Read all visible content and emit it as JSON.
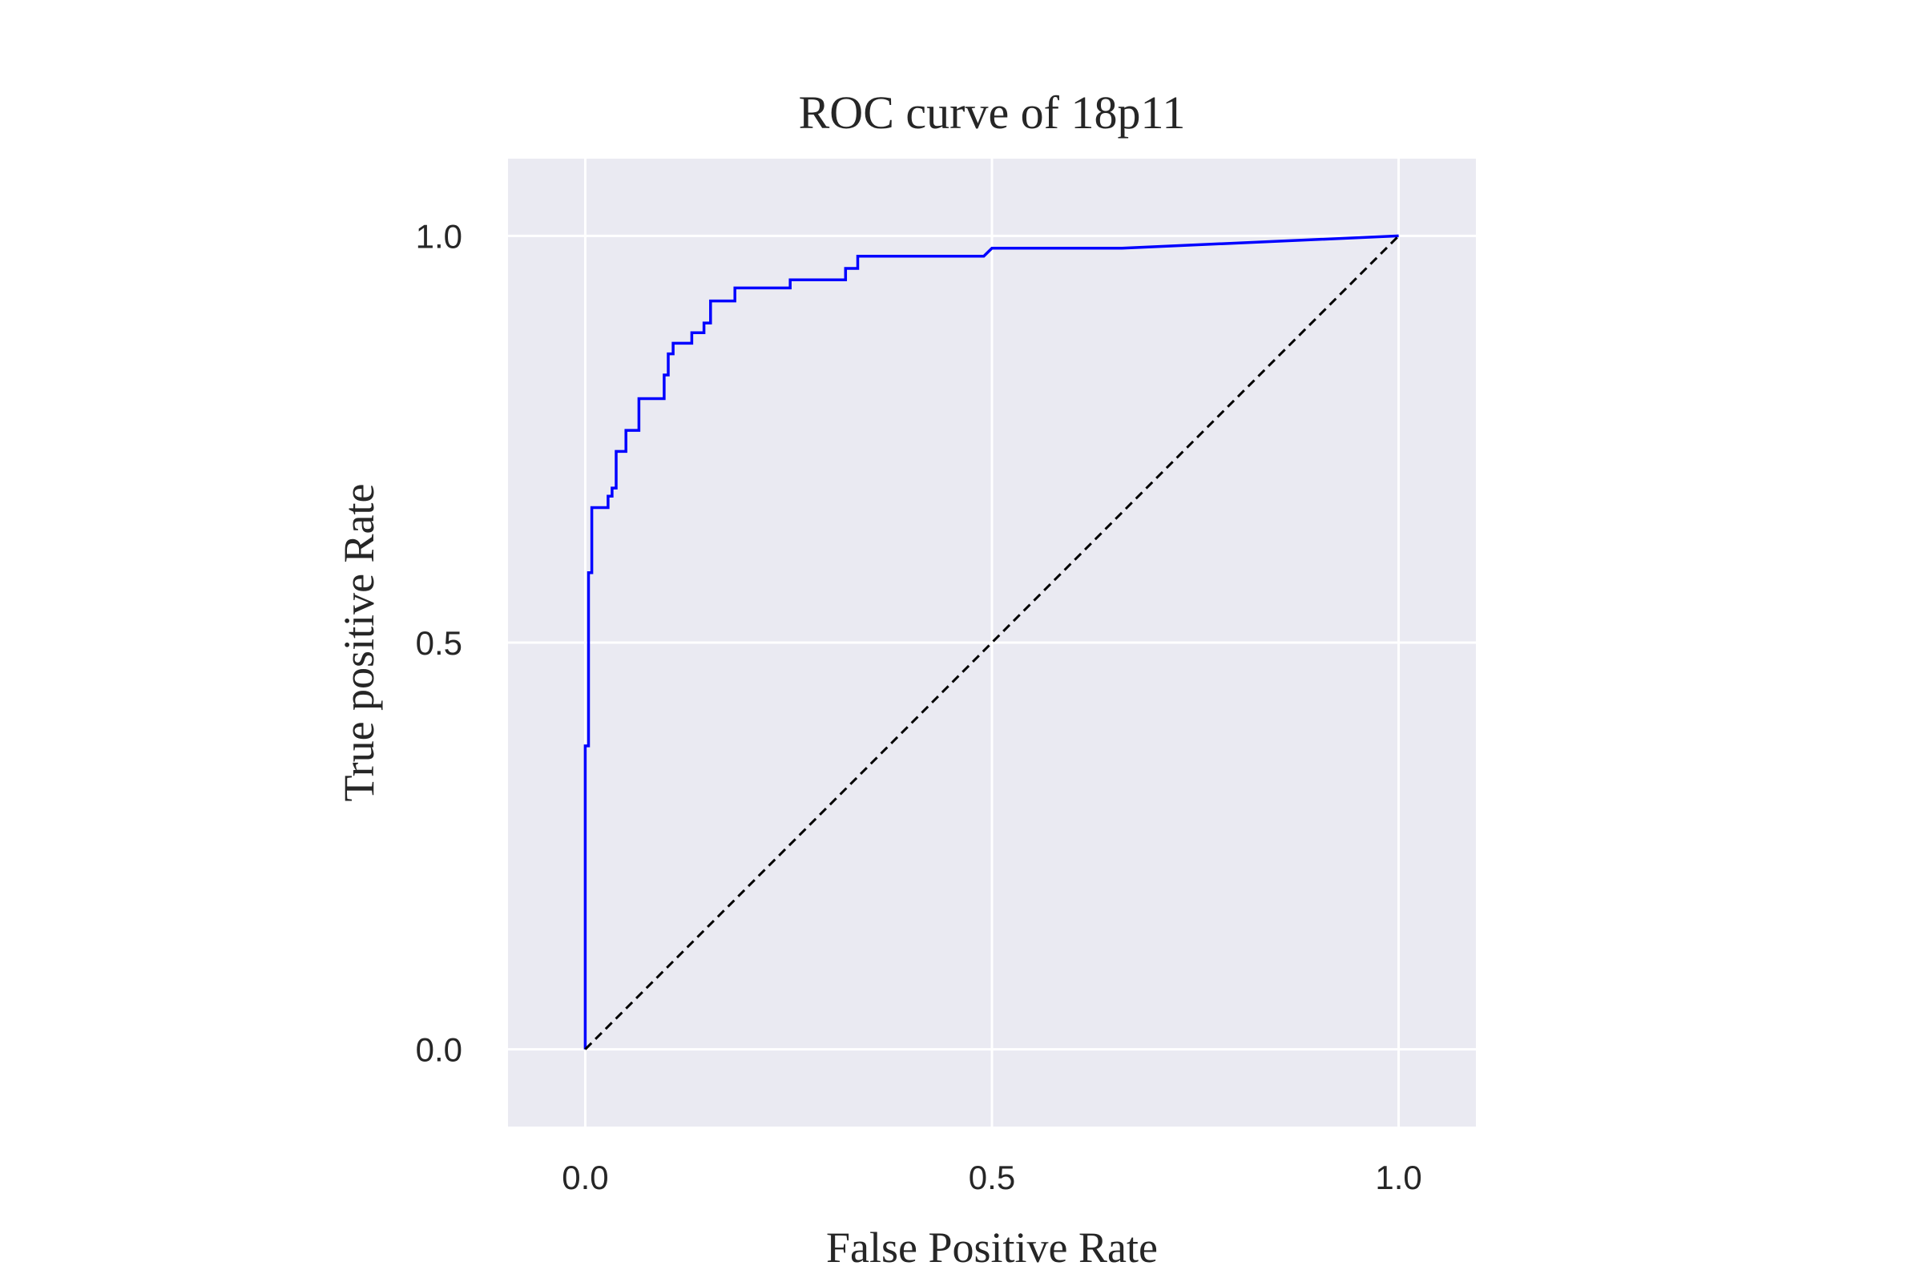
{
  "chart_data": {
    "type": "line",
    "title": "ROC curve of 18p11",
    "xlabel": "False Positive Rate",
    "ylabel": "True positive Rate",
    "xlim": [
      -0.095,
      1.095
    ],
    "ylim": [
      -0.095,
      1.095
    ],
    "xticks": [
      0.0,
      0.5,
      1.0
    ],
    "yticks": [
      0.0,
      0.5,
      1.0
    ],
    "xtick_labels": [
      "0.0",
      "0.5",
      "1.0"
    ],
    "ytick_labels": [
      "0.0",
      "0.5",
      "1.0"
    ],
    "grid": true,
    "colors": {
      "background": "#eaeaf2",
      "grid": "#ffffff",
      "roc": "#0000ff",
      "reference": "#000000",
      "text": "#262626"
    },
    "series": [
      {
        "style": "solid",
        "x": [
          0.0,
          0.0,
          0.004,
          0.004,
          0.008,
          0.008,
          0.012,
          0.012,
          0.028,
          0.028,
          0.033,
          0.033,
          0.038,
          0.038,
          0.05,
          0.05,
          0.066,
          0.066,
          0.097,
          0.097,
          0.102,
          0.102,
          0.108,
          0.108,
          0.131,
          0.131,
          0.146,
          0.146,
          0.154,
          0.154,
          0.184,
          0.184,
          0.252,
          0.252,
          0.32,
          0.32,
          0.335,
          0.335,
          0.49,
          0.5,
          0.66,
          1.0
        ],
        "y": [
          0.0,
          0.373,
          0.373,
          0.586,
          0.586,
          0.666,
          0.666,
          0.666,
          0.666,
          0.68,
          0.68,
          0.69,
          0.69,
          0.735,
          0.735,
          0.761,
          0.761,
          0.8,
          0.8,
          0.829,
          0.829,
          0.855,
          0.855,
          0.868,
          0.868,
          0.881,
          0.881,
          0.893,
          0.893,
          0.92,
          0.92,
          0.936,
          0.936,
          0.946,
          0.946,
          0.96,
          0.96,
          0.975,
          0.975,
          0.985,
          0.985,
          1.0
        ]
      },
      {
        "style": "dashed",
        "x": [
          0.0,
          1.0
        ],
        "y": [
          0.0,
          1.0
        ]
      }
    ]
  }
}
